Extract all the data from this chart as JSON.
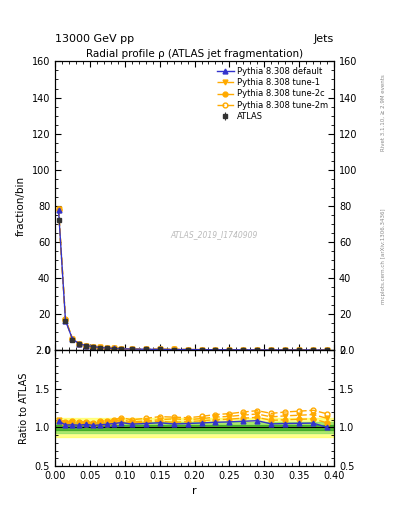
{
  "title": "Radial profile ρ (ATLAS jet fragmentation)",
  "top_left_label": "13000 GeV pp",
  "top_right_label": "Jets",
  "ylabel_main": "fraction/bin",
  "ylabel_ratio": "Ratio to ATLAS",
  "xlabel": "r",
  "watermark": "ATLAS_2019_I1740909",
  "right_label_top": "Rivet 3.1.10, ≥ 2.9M events",
  "right_label_bottom": "mcplots.cern.ch [arXiv:1306.3436]",
  "ylim_main": [
    0,
    160
  ],
  "ylim_ratio": [
    0.5,
    2.0
  ],
  "yticks_main": [
    0,
    20,
    40,
    60,
    80,
    100,
    120,
    140,
    160
  ],
  "yticks_ratio": [
    0.5,
    1.0,
    1.5,
    2.0
  ],
  "xlim": [
    0.0,
    0.4
  ],
  "r_values": [
    0.005,
    0.015,
    0.025,
    0.035,
    0.045,
    0.055,
    0.065,
    0.075,
    0.085,
    0.095,
    0.11,
    0.13,
    0.15,
    0.17,
    0.19,
    0.21,
    0.23,
    0.25,
    0.27,
    0.29,
    0.31,
    0.33,
    0.35,
    0.37,
    0.39
  ],
  "atlas_data": [
    72,
    16,
    6,
    3.5,
    2.5,
    2.0,
    1.5,
    1.2,
    1.0,
    0.8,
    0.7,
    0.6,
    0.5,
    0.45,
    0.4,
    0.35,
    0.3,
    0.28,
    0.25,
    0.23,
    0.22,
    0.2,
    0.19,
    0.18,
    0.17
  ],
  "atlas_err": [
    2,
    0.5,
    0.3,
    0.2,
    0.15,
    0.12,
    0.1,
    0.08,
    0.07,
    0.06,
    0.05,
    0.04,
    0.04,
    0.03,
    0.03,
    0.03,
    0.02,
    0.02,
    0.02,
    0.02,
    0.02,
    0.015,
    0.015,
    0.015,
    0.015
  ],
  "pythia_default": [
    78,
    16.5,
    6.2,
    3.6,
    2.6,
    2.05,
    1.55,
    1.25,
    1.05,
    0.85,
    0.73,
    0.63,
    0.53,
    0.47,
    0.42,
    0.37,
    0.32,
    0.3,
    0.27,
    0.25,
    0.23,
    0.21,
    0.2,
    0.19,
    0.17
  ],
  "pythia_tune1": [
    78.5,
    17,
    6.4,
    3.7,
    2.65,
    2.1,
    1.6,
    1.28,
    1.08,
    0.88,
    0.75,
    0.65,
    0.55,
    0.5,
    0.44,
    0.39,
    0.34,
    0.32,
    0.29,
    0.27,
    0.25,
    0.23,
    0.22,
    0.21,
    0.19
  ],
  "pythia_tune2c": [
    78,
    16.8,
    6.3,
    3.65,
    2.62,
    2.07,
    1.57,
    1.26,
    1.06,
    0.86,
    0.74,
    0.64,
    0.54,
    0.48,
    0.43,
    0.38,
    0.33,
    0.31,
    0.28,
    0.26,
    0.24,
    0.22,
    0.21,
    0.2,
    0.18
  ],
  "pythia_tune2m": [
    78.2,
    17.2,
    6.5,
    3.75,
    2.68,
    2.12,
    1.62,
    1.3,
    1.1,
    0.9,
    0.77,
    0.67,
    0.57,
    0.51,
    0.45,
    0.4,
    0.35,
    0.33,
    0.3,
    0.28,
    0.26,
    0.24,
    0.23,
    0.22,
    0.2
  ],
  "atlas_color": "#333333",
  "default_color": "#3333cc",
  "tune1_color": "#ffaa00",
  "tune2c_color": "#ffaa00",
  "tune2m_color": "#ffaa00",
  "green_inner_color": "#008800",
  "green_outer_color": "#44cc44",
  "yellow_color": "#ffff44",
  "green_band_inner": 0.03,
  "green_band_outer": 0.07,
  "yellow_band_outer": 0.12
}
